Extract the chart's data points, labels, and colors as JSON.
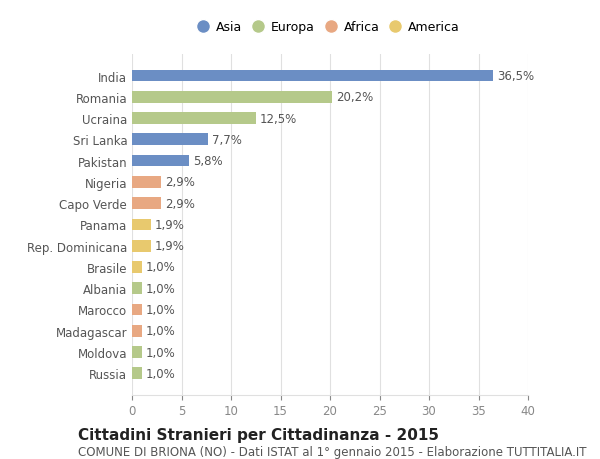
{
  "categories": [
    "India",
    "Romania",
    "Ucraina",
    "Sri Lanka",
    "Pakistan",
    "Nigeria",
    "Capo Verde",
    "Panama",
    "Rep. Dominicana",
    "Brasile",
    "Albania",
    "Marocco",
    "Madagascar",
    "Moldova",
    "Russia"
  ],
  "values": [
    36.5,
    20.2,
    12.5,
    7.7,
    5.8,
    2.9,
    2.9,
    1.9,
    1.9,
    1.0,
    1.0,
    1.0,
    1.0,
    1.0,
    1.0
  ],
  "labels": [
    "36,5%",
    "20,2%",
    "12,5%",
    "7,7%",
    "5,8%",
    "2,9%",
    "2,9%",
    "1,9%",
    "1,9%",
    "1,0%",
    "1,0%",
    "1,0%",
    "1,0%",
    "1,0%",
    "1,0%"
  ],
  "colors": [
    "#6b8ec4",
    "#b5c98a",
    "#b5c98a",
    "#6b8ec4",
    "#6b8ec4",
    "#e8a882",
    "#e8a882",
    "#e8c96e",
    "#e8c96e",
    "#e8c96e",
    "#b5c98a",
    "#e8a882",
    "#e8a882",
    "#b5c98a",
    "#b5c98a"
  ],
  "legend_labels": [
    "Asia",
    "Europa",
    "Africa",
    "America"
  ],
  "legend_colors": [
    "#6b8ec4",
    "#b5c98a",
    "#e8a882",
    "#e8c96e"
  ],
  "title": "Cittadini Stranieri per Cittadinanza - 2015",
  "subtitle": "COMUNE DI BRIONA (NO) - Dati ISTAT al 1° gennaio 2015 - Elaborazione TUTTITALIA.IT",
  "xlim": [
    0,
    40
  ],
  "xticks": [
    0,
    5,
    10,
    15,
    20,
    25,
    30,
    35,
    40
  ],
  "bg_color": "#ffffff",
  "grid_color": "#e0e0e0",
  "bar_height": 0.55,
  "title_fontsize": 11,
  "subtitle_fontsize": 8.5,
  "label_fontsize": 8.5,
  "tick_fontsize": 8.5,
  "legend_fontsize": 9
}
